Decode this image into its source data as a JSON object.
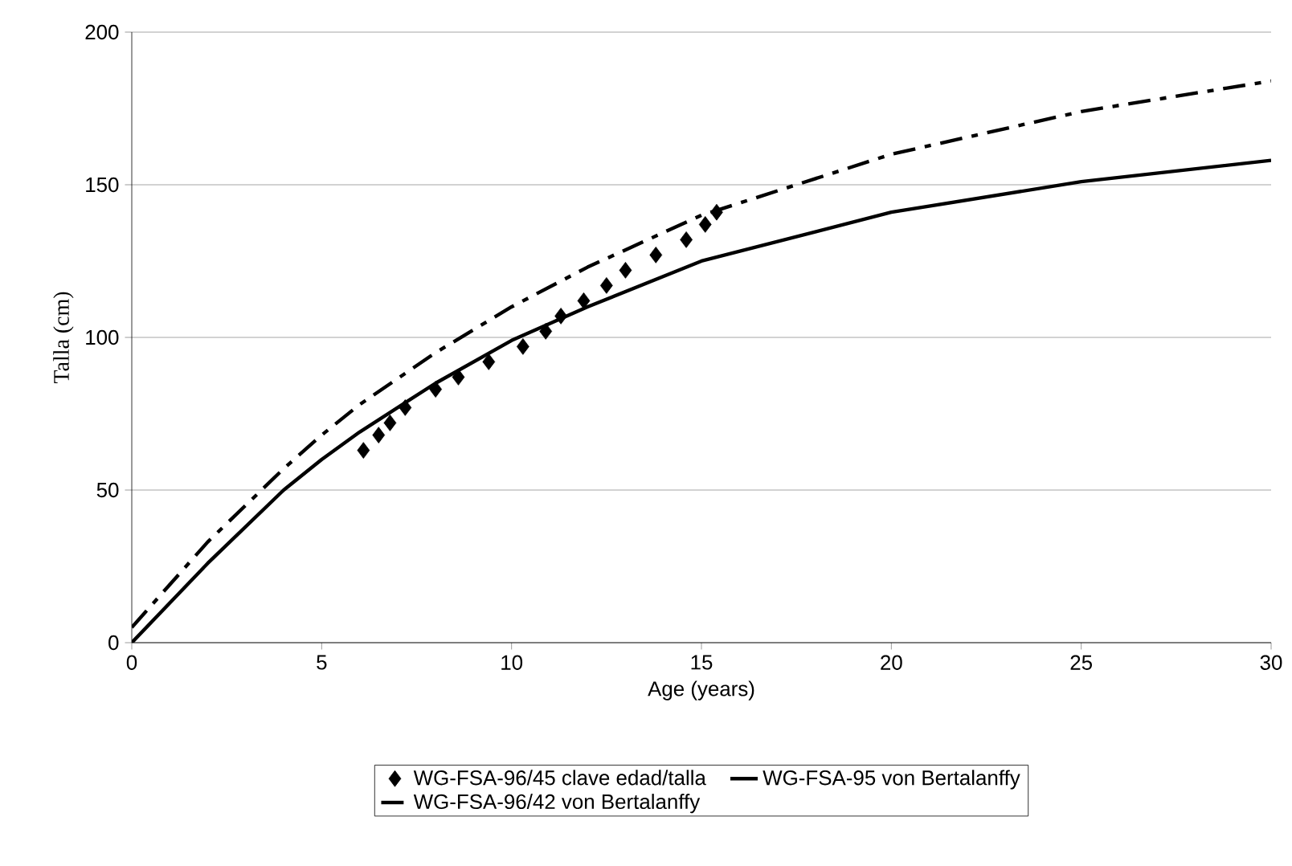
{
  "chart_data": {
    "type": "line",
    "xlabel": "Age (years)",
    "ylabel": "Talla (cm)",
    "xlim": [
      0,
      30
    ],
    "ylim": [
      0,
      200
    ],
    "xticks": [
      0,
      5,
      10,
      15,
      20,
      25,
      30
    ],
    "yticks": [
      0,
      50,
      100,
      150,
      200
    ],
    "grid": "y",
    "legend": "bottom",
    "series": [
      {
        "name": "WG-FSA-96/45 clave edad/talla",
        "type": "scatter",
        "marker": "diamond",
        "color": "#000000",
        "x": [
          6.1,
          6.5,
          6.8,
          7.2,
          8.0,
          8.6,
          9.4,
          10.3,
          10.9,
          11.3,
          11.9,
          12.5,
          13.0,
          13.8,
          14.6,
          15.1,
          15.4
        ],
        "values": [
          63,
          68,
          72,
          77,
          83,
          87,
          92,
          97,
          102,
          107,
          112,
          117,
          122,
          127,
          132,
          137,
          141
        ]
      },
      {
        "name": "WG-FSA-95 von Bertalanffy",
        "line_style": "solid",
        "color": "#000000",
        "x": [
          0,
          2,
          4,
          5,
          6,
          8,
          10,
          12,
          15,
          20,
          25,
          30
        ],
        "values": [
          0,
          26,
          50,
          60,
          69,
          85,
          99,
          110,
          125,
          141,
          151,
          158
        ]
      },
      {
        "name": "WG-FSA-96/42 von Bertalanffy",
        "line_style": "dashed",
        "color": "#000000",
        "x": [
          0,
          2,
          4,
          5,
          6,
          8,
          10,
          12,
          15,
          20,
          25,
          30
        ],
        "values": [
          5,
          33,
          57,
          68,
          78,
          95,
          110,
          123,
          140,
          160,
          174,
          184
        ]
      }
    ]
  }
}
